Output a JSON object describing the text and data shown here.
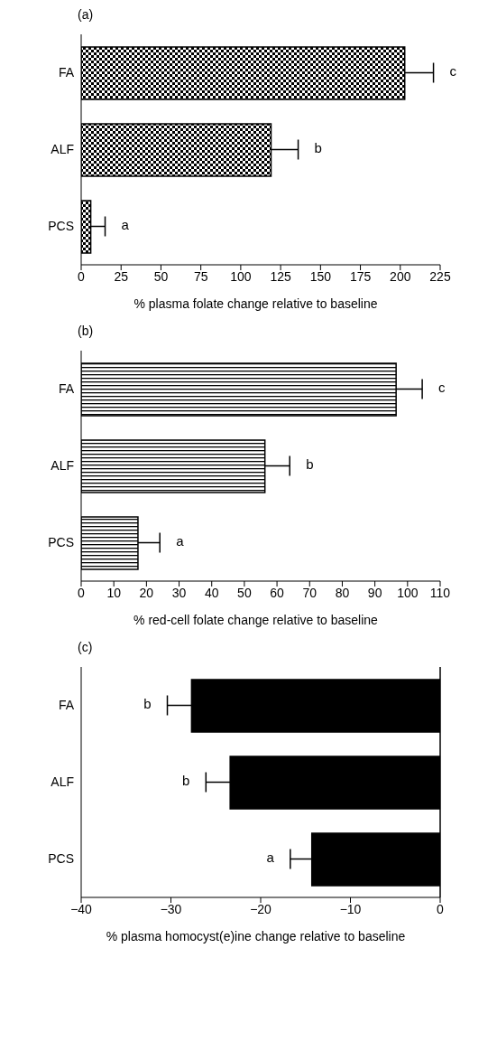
{
  "chart_data": [
    {
      "type": "bar",
      "orientation": "horizontal",
      "title": "(a)",
      "xlabel": "% plasma folate change relative to baseline",
      "categories": [
        "FA",
        "ALF",
        "PCS"
      ],
      "values": [
        202.8,
        119,
        6
      ],
      "errors": [
        [
          202.8,
          220.8
        ],
        [
          119,
          136
        ],
        [
          6,
          15
        ]
      ],
      "color": "#000000",
      "xlim": [
        0,
        225
      ],
      "xticks": [
        0,
        25,
        50,
        75,
        100,
        125,
        150,
        175,
        200,
        225
      ],
      "annotations": [
        "c",
        "b",
        "a"
      ]
    },
    {
      "type": "bar",
      "orientation": "horizontal",
      "title": "(b)",
      "xlabel": "% red-cell folate change relative to baseline",
      "categories": [
        "FA",
        "ALF",
        "PCS"
      ],
      "values": [
        96.5,
        56.3,
        17.4
      ],
      "errors": [
        [
          96.5,
          104.5
        ],
        [
          56.3,
          63.9
        ],
        [
          17.4,
          24.1
        ]
      ],
      "color": "#000000",
      "xlim": [
        0,
        110
      ],
      "xticks": [
        0,
        10,
        20,
        30,
        40,
        50,
        60,
        70,
        80,
        90,
        100,
        110
      ],
      "annotations": [
        "c",
        "b",
        "a"
      ]
    },
    {
      "type": "bar",
      "orientation": "horizontal",
      "title": "(c)",
      "xlabel": "% plasma homocyst(e)ine change relative to baseline",
      "categories": [
        "FA",
        "ALF",
        "PCS"
      ],
      "values": [
        -27.7,
        -23.4,
        -14.3
      ],
      "errors": [
        [
          -30.4,
          -27.7
        ],
        [
          -26.1,
          -23.4
        ],
        [
          -16.7,
          -14.3
        ]
      ],
      "color": "#000000",
      "xlim": [
        -40,
        0
      ],
      "xticks": [
        {
          "value": -40,
          "label": "−40"
        },
        {
          "value": -30,
          "label": "−30"
        },
        {
          "value": -20,
          "label": "−20"
        },
        {
          "value": -10,
          "label": "−10"
        },
        0
      ],
      "ref_lines": [
        {
          "axis": "x",
          "value": 0
        }
      ],
      "annotations": [
        "b",
        "b",
        "a"
      ]
    }
  ]
}
